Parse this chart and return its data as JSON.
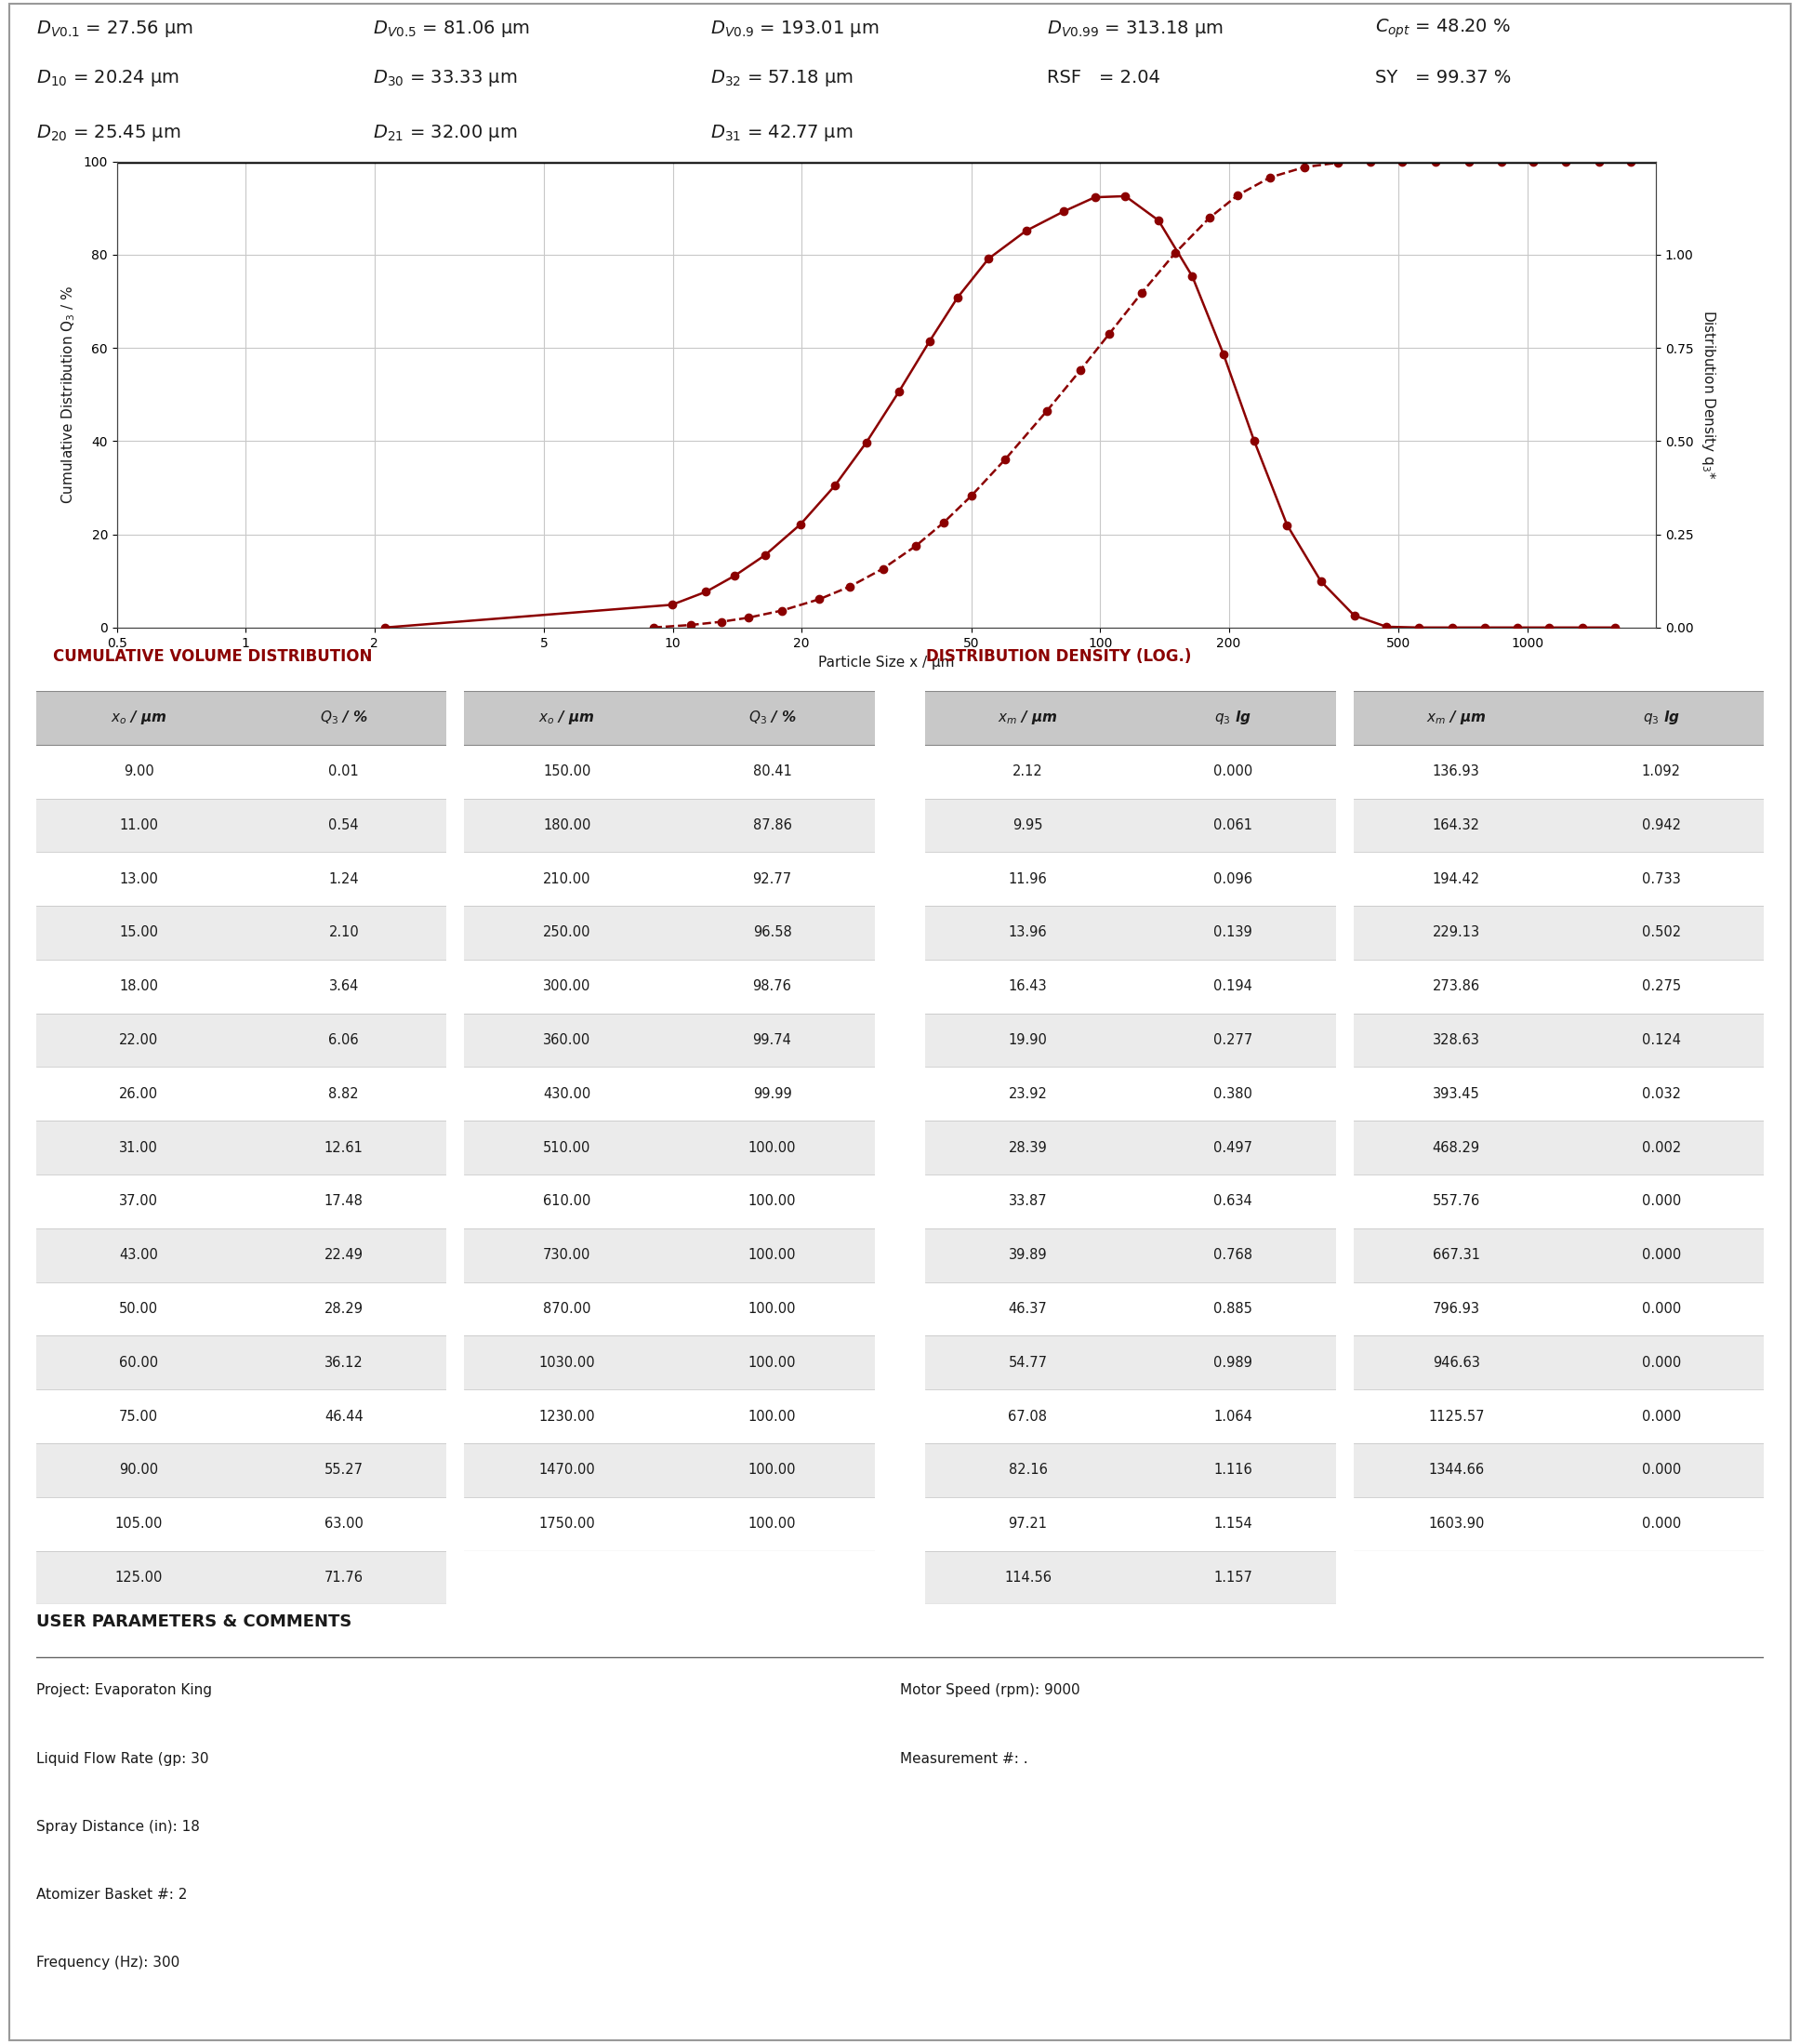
{
  "cumulative_x": [
    9,
    11,
    13,
    15,
    18,
    22,
    26,
    31,
    37,
    43,
    50,
    60,
    75,
    90,
    105,
    125,
    150,
    180,
    210,
    250,
    300,
    360,
    430,
    510,
    610,
    730,
    870,
    1030,
    1230,
    1470,
    1750
  ],
  "cumulative_y": [
    0.01,
    0.54,
    1.24,
    2.1,
    3.64,
    6.06,
    8.82,
    12.61,
    17.48,
    22.49,
    28.29,
    36.12,
    46.44,
    55.27,
    63.0,
    71.76,
    80.41,
    87.86,
    92.77,
    96.58,
    98.76,
    99.74,
    99.99,
    100.0,
    100.0,
    100.0,
    100.0,
    100.0,
    100.0,
    100.0,
    100.0
  ],
  "density_xm": [
    2.12,
    9.95,
    11.96,
    13.96,
    16.43,
    19.9,
    23.92,
    28.39,
    33.87,
    39.89,
    46.37,
    54.77,
    67.08,
    82.16,
    97.21,
    114.56,
    136.93,
    164.32,
    194.42,
    229.13,
    273.86,
    328.63,
    393.45,
    468.29,
    557.76,
    667.31,
    796.93,
    946.63,
    1125.57,
    1344.66,
    1603.9
  ],
  "density_q3": [
    0.0,
    0.061,
    0.096,
    0.139,
    0.194,
    0.277,
    0.38,
    0.497,
    0.634,
    0.768,
    0.885,
    0.989,
    1.064,
    1.116,
    1.154,
    1.157,
    1.092,
    0.942,
    0.733,
    0.502,
    0.275,
    0.124,
    0.032,
    0.002,
    0.0,
    0.0,
    0.0,
    0.0,
    0.0,
    0.0,
    0.0
  ],
  "line_color": "#8B0000",
  "dark_color": "#1a1a1a",
  "red_title_color": "#8B0000",
  "cumul_table": {
    "xo1": [
      9.0,
      11.0,
      13.0,
      15.0,
      18.0,
      22.0,
      26.0,
      31.0,
      37.0,
      43.0,
      50.0,
      60.0,
      75.0,
      90.0,
      105.0,
      125.0
    ],
    "q31": [
      0.01,
      0.54,
      1.24,
      2.1,
      3.64,
      6.06,
      8.82,
      12.61,
      17.48,
      22.49,
      28.29,
      36.12,
      46.44,
      55.27,
      63.0,
      71.76
    ],
    "xo2": [
      150.0,
      180.0,
      210.0,
      250.0,
      300.0,
      360.0,
      430.0,
      510.0,
      610.0,
      730.0,
      870.0,
      1030.0,
      1230.0,
      1470.0,
      1750.0
    ],
    "q32": [
      80.41,
      87.86,
      92.77,
      96.58,
      98.76,
      99.74,
      99.99,
      100.0,
      100.0,
      100.0,
      100.0,
      100.0,
      100.0,
      100.0,
      100.0
    ]
  },
  "density_table": {
    "xm1": [
      2.12,
      9.95,
      11.96,
      13.96,
      16.43,
      19.9,
      23.92,
      28.39,
      33.87,
      39.89,
      46.37,
      54.77,
      67.08,
      82.16,
      97.21,
      114.56
    ],
    "q3lg1": [
      0.0,
      0.061,
      0.096,
      0.139,
      0.194,
      0.277,
      0.38,
      0.497,
      0.634,
      0.768,
      0.885,
      0.989,
      1.064,
      1.116,
      1.154,
      1.157
    ],
    "xm2": [
      136.93,
      164.32,
      194.42,
      229.13,
      273.86,
      328.63,
      393.45,
      468.29,
      557.76,
      667.31,
      796.93,
      946.63,
      1125.57,
      1344.66,
      1603.9
    ],
    "q3lg2": [
      1.092,
      0.942,
      0.733,
      0.502,
      0.275,
      0.124,
      0.032,
      0.002,
      0.0,
      0.0,
      0.0,
      0.0,
      0.0,
      0.0,
      0.0
    ]
  },
  "user_params": {
    "project": "Evaporaton King",
    "liquid_flow_rate": "30",
    "spray_distance": "18",
    "atomizer_basket": "2",
    "frequency": "300",
    "motor_speed": "9000",
    "measurement": "."
  },
  "header_rows": [
    [
      [
        "D",
        "V0.1",
        "27.56",
        "μm"
      ],
      [
        "D",
        "V0.5",
        "81.06",
        "μm"
      ],
      [
        "D",
        "V0.9",
        "193.01",
        "μm"
      ],
      [
        "D",
        "V0.99",
        "313.18",
        "μm"
      ],
      [
        "C",
        "opt",
        "48.20",
        "%"
      ]
    ],
    [
      [
        "D",
        "10",
        "20.24",
        "μm"
      ],
      [
        "D",
        "30",
        "33.33",
        "μm"
      ],
      [
        "D",
        "32",
        "57.18",
        "μm"
      ],
      [
        "RSF",
        "",
        "2.04",
        ""
      ],
      [
        "SY",
        "",
        "99.37",
        "%"
      ]
    ],
    [
      [
        "D",
        "20",
        "25.45",
        "μm"
      ],
      [
        "D",
        "21",
        "32.00",
        "μm"
      ],
      [
        "D",
        "31",
        "42.77",
        "μm"
      ]
    ]
  ]
}
